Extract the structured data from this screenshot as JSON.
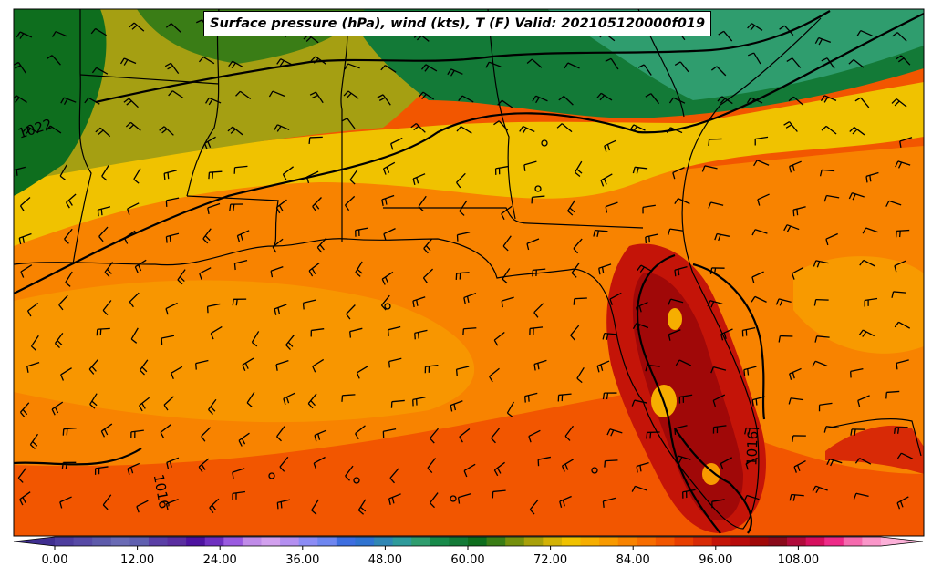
{
  "title": "Surface pressure (hPa), wind (kts), T (F) Valid: 202105120000f019",
  "isobars": [
    {
      "label": "1022"
    },
    {
      "label": "1016"
    },
    {
      "label": "1016"
    }
  ],
  "colorbar": {
    "ticks": [
      "0.00",
      "12.00",
      "24.00",
      "36.00",
      "48.00",
      "60.00",
      "72.00",
      "84.00",
      "96.00",
      "108.00"
    ],
    "min": -6,
    "max": 120,
    "step": 3,
    "colors": [
      "#4d3d9e",
      "#574aa6",
      "#5e5bab",
      "#6a6bb5",
      "#6060b0",
      "#5a3fa6",
      "#5a2ea0",
      "#4d12a0",
      "#6e2fc0",
      "#9a5ae0",
      "#c08be8",
      "#d2a0ee",
      "#b48ff0",
      "#8c8cf5",
      "#6e86f0",
      "#3d6ee0",
      "#2f73d0",
      "#2f86b4",
      "#2e9a9a",
      "#2f9d6e",
      "#188a4a",
      "#137a37",
      "#0e6e1e",
      "#3a7d16",
      "#75900d",
      "#a8a00a",
      "#d3b205",
      "#f0c200",
      "#f6ae00",
      "#f89a00",
      "#f88300",
      "#f76d00",
      "#f25600",
      "#e83e00",
      "#d82a06",
      "#c41408",
      "#b80a0a",
      "#a00808",
      "#8a0a1a",
      "#b00a3a",
      "#d60f5e",
      "#ee2a88",
      "#f56aae",
      "#fa96c9"
    ],
    "under_color": "#3f2e90",
    "over_color": "#fcb0d8"
  },
  "colors": {
    "land_dark_green": "#1e6e1e",
    "olive": "#a59f12",
    "yellow": "#ecbe06",
    "orange": "#f88300",
    "red_orange": "#f25600",
    "dark_red": "#b00a0a"
  }
}
